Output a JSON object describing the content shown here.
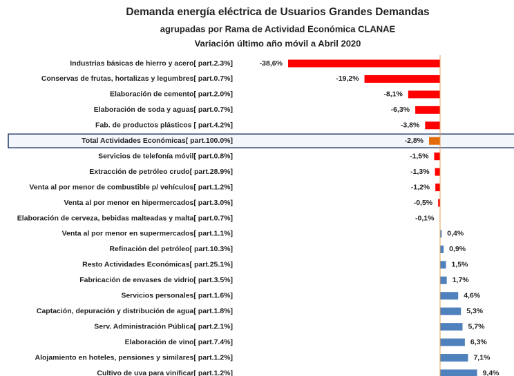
{
  "chart_data": {
    "type": "bar",
    "orientation": "horizontal",
    "title": "Demanda energía eléctrica de Usuarios Grandes Demandas",
    "subtitle": "agrupadas por Rama de Actividad Económica CLANAE",
    "subtitle2": "Variación último año móvil a Abril 2020",
    "categories": [
      "Industrias básicas de hierro y acero[ part.2.3%]",
      "Conservas de frutas, hortalizas y legumbres[ part.0.7%]",
      "Elaboración de cemento[ part.2.0%]",
      "Elaboración de soda y aguas[ part.0.7%]",
      "Fab. de productos plásticos [ part.4.2%]",
      "Total Actividades Económicas[ part.100.0%]",
      "Servicios de telefonía móvil[ part.0.8%]",
      "Extracción de petróleo crudo[ part.28.9%]",
      "Venta al por menor de combustible p/ vehículos[ part.1.2%]",
      "Venta al por menor en hipermercados[ part.3.0%]",
      "Elaboración de cerveza, bebidas malteadas y malta[ part.0.7%]",
      "Venta al por menor en supermercados[ part.1.1%]",
      "Refinación del petróleo[ part.10.3%]",
      "Resto Actividades Económicas[ part.25.1%]",
      "Fabricación de envases de vidrio[ part.3.5%]",
      "Servicios personales[ part.1.6%]",
      "Captación, depuración y distribución de agua[ part.1.8%]",
      "Serv. Administración Pública[ part.2.1%]",
      "Elaboración de vino[ part.7.4%]",
      "Alojamiento en hoteles, pensiones y similares[ part.1.2%]",
      "Cultivo de uva para vinificar[ part.1.2%]"
    ],
    "values": [
      -38.6,
      -19.2,
      -8.1,
      -6.3,
      -3.8,
      -2.8,
      -1.5,
      -1.3,
      -1.2,
      -0.5,
      -0.1,
      0.4,
      0.9,
      1.5,
      1.7,
      4.6,
      5.3,
      5.7,
      6.3,
      7.1,
      9.4
    ],
    "value_labels": [
      "-38,6%",
      "-19,2%",
      "-8,1%",
      "-6,3%",
      "-3,8%",
      "-2,8%",
      "-1,5%",
      "-1,3%",
      "-1,2%",
      "-0,5%",
      "-0,1%",
      "0,4%",
      "0,9%",
      "1,5%",
      "1,7%",
      "4,6%",
      "5,3%",
      "5,7%",
      "6,3%",
      "7,1%",
      "9,4%"
    ],
    "colors": [
      "#ff0000",
      "#ff0000",
      "#ff0000",
      "#ff0000",
      "#ff0000",
      "#e36c0a",
      "#ff0000",
      "#ff0000",
      "#ff0000",
      "#ff0000",
      "#ff0000",
      "#4f81bd",
      "#4f81bd",
      "#4f81bd",
      "#4f81bd",
      "#4f81bd",
      "#4f81bd",
      "#4f81bd",
      "#4f81bd",
      "#4f81bd",
      "#4f81bd"
    ],
    "highlight": 5,
    "xlim": [
      -40,
      10
    ]
  }
}
